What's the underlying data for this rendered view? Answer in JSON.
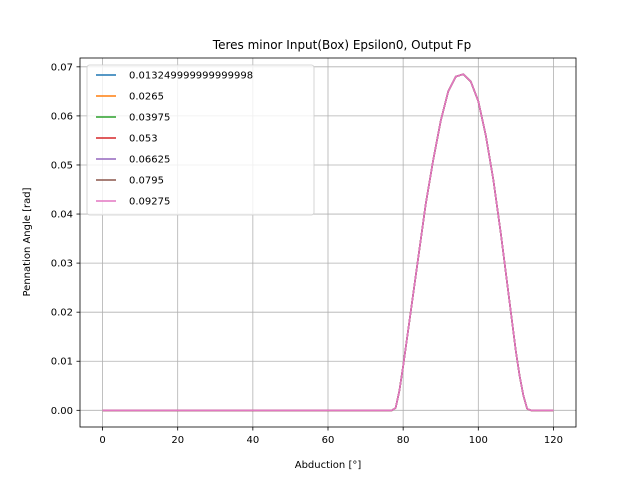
{
  "chart_data": {
    "type": "line",
    "title": "Teres minor Input(Box) Epsilon0, Output Fp",
    "xlabel": "Abduction [°]",
    "ylabel": "Pennation Angle [rad]",
    "xlim": [
      -6,
      126
    ],
    "ylim": [
      -0.0034,
      0.0718
    ],
    "xticks": [
      0,
      20,
      40,
      60,
      80,
      100,
      120
    ],
    "xtick_labels": [
      "0",
      "20",
      "40",
      "60",
      "80",
      "100",
      "120"
    ],
    "yticks": [
      0.0,
      0.01,
      0.02,
      0.03,
      0.04,
      0.05,
      0.06,
      0.07
    ],
    "ytick_labels": [
      "0.00",
      "0.01",
      "0.02",
      "0.03",
      "0.04",
      "0.05",
      "0.06",
      "0.07"
    ],
    "grid": true,
    "legend_position": "top-left",
    "x": [
      0,
      10,
      20,
      30,
      40,
      50,
      60,
      70,
      77,
      78,
      79,
      80,
      82,
      84,
      86,
      88,
      90,
      92,
      94,
      96,
      98,
      100,
      102,
      104,
      106,
      108,
      110,
      111,
      112,
      113,
      114,
      120
    ],
    "series": [
      {
        "name": "0.013249999999999998",
        "color": "#1f77b4",
        "values": [
          0,
          0,
          0,
          0,
          0,
          0,
          0,
          0,
          0,
          0.0005,
          0.004,
          0.009,
          0.02,
          0.031,
          0.042,
          0.051,
          0.059,
          0.065,
          0.068,
          0.0685,
          0.067,
          0.063,
          0.056,
          0.047,
          0.036,
          0.024,
          0.012,
          0.007,
          0.003,
          0.0003,
          0,
          0
        ]
      },
      {
        "name": "0.0265",
        "color": "#ff7f0e",
        "values": [
          0,
          0,
          0,
          0,
          0,
          0,
          0,
          0,
          0,
          0.0005,
          0.004,
          0.009,
          0.02,
          0.031,
          0.042,
          0.051,
          0.059,
          0.065,
          0.068,
          0.0685,
          0.067,
          0.063,
          0.056,
          0.047,
          0.036,
          0.024,
          0.012,
          0.007,
          0.003,
          0.0003,
          0,
          0
        ]
      },
      {
        "name": "0.03975",
        "color": "#2ca02c",
        "values": [
          0,
          0,
          0,
          0,
          0,
          0,
          0,
          0,
          0,
          0.0005,
          0.004,
          0.009,
          0.02,
          0.031,
          0.042,
          0.051,
          0.059,
          0.065,
          0.068,
          0.0685,
          0.067,
          0.063,
          0.056,
          0.047,
          0.036,
          0.024,
          0.012,
          0.007,
          0.003,
          0.0003,
          0,
          0
        ]
      },
      {
        "name": "0.053",
        "color": "#d62728",
        "values": [
          0,
          0,
          0,
          0,
          0,
          0,
          0,
          0,
          0,
          0.0005,
          0.004,
          0.009,
          0.02,
          0.031,
          0.042,
          0.051,
          0.059,
          0.065,
          0.068,
          0.0685,
          0.067,
          0.063,
          0.056,
          0.047,
          0.036,
          0.024,
          0.012,
          0.007,
          0.003,
          0.0003,
          0,
          0
        ]
      },
      {
        "name": "0.06625",
        "color": "#9467bd",
        "values": [
          0,
          0,
          0,
          0,
          0,
          0,
          0,
          0,
          0,
          0.0005,
          0.004,
          0.009,
          0.02,
          0.031,
          0.042,
          0.051,
          0.059,
          0.065,
          0.068,
          0.0685,
          0.067,
          0.063,
          0.056,
          0.047,
          0.036,
          0.024,
          0.012,
          0.007,
          0.003,
          0.0003,
          0,
          0
        ]
      },
      {
        "name": "0.0795",
        "color": "#8c564b",
        "values": [
          0,
          0,
          0,
          0,
          0,
          0,
          0,
          0,
          0,
          0.0005,
          0.004,
          0.009,
          0.02,
          0.031,
          0.042,
          0.051,
          0.059,
          0.065,
          0.068,
          0.0685,
          0.067,
          0.063,
          0.056,
          0.047,
          0.036,
          0.024,
          0.012,
          0.007,
          0.003,
          0.0003,
          0,
          0
        ]
      },
      {
        "name": "0.09275",
        "color": "#e377c2",
        "values": [
          0,
          0,
          0,
          0,
          0,
          0,
          0,
          0,
          0,
          0.0005,
          0.004,
          0.009,
          0.02,
          0.031,
          0.042,
          0.051,
          0.059,
          0.065,
          0.068,
          0.0685,
          0.067,
          0.063,
          0.056,
          0.047,
          0.036,
          0.024,
          0.012,
          0.007,
          0.003,
          0.0003,
          0,
          0
        ]
      }
    ]
  }
}
